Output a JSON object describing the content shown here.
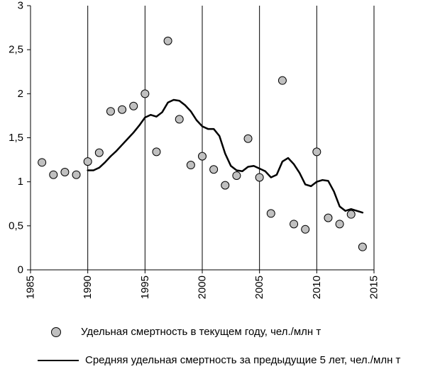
{
  "chart_data": {
    "type": "scatter",
    "title": "",
    "xlabel": "",
    "ylabel": "",
    "xlim": [
      1985,
      2015
    ],
    "ylim": [
      0,
      3
    ],
    "x_ticks": [
      1985,
      1990,
      1995,
      2000,
      2005,
      2010,
      2015
    ],
    "x_tick_labels": [
      "1985",
      "1990",
      "1995",
      "2000",
      "2005",
      "2010",
      "2015"
    ],
    "y_ticks": [
      0,
      0.5,
      1,
      1.5,
      2,
      2.5,
      3
    ],
    "y_tick_labels": [
      "0",
      "0,5",
      "1",
      "1,5",
      "2",
      "2,5",
      "3"
    ],
    "grid": "vertical",
    "legend_position": "bottom",
    "series": [
      {
        "name": "Удельная смертность в текущем году, чел./млн т",
        "kind": "scatter",
        "color": "#c0c0c0",
        "x": [
          1986,
          1987,
          1988,
          1989,
          1990,
          1991,
          1992,
          1993,
          1994,
          1995,
          1996,
          1997,
          1998,
          1999,
          2000,
          2001,
          2002,
          2003,
          2004,
          2005,
          2006,
          2007,
          2008,
          2009,
          2010,
          2011,
          2012,
          2013,
          2014
        ],
        "y": [
          1.22,
          1.08,
          1.11,
          1.08,
          1.23,
          1.33,
          1.8,
          1.82,
          1.86,
          2.0,
          1.34,
          2.6,
          1.71,
          1.19,
          1.29,
          1.14,
          0.96,
          1.07,
          1.49,
          1.05,
          0.64,
          2.15,
          0.52,
          0.46,
          1.34,
          0.59,
          0.52,
          0.63,
          0.26
        ]
      },
      {
        "name": "Средняя удельная смертность за предыдущие 5 лет, чел./млн т",
        "kind": "line",
        "color": "#000000",
        "x": [
          1990,
          1990.5,
          1991,
          1991.5,
          1992,
          1992.5,
          1993,
          1993.5,
          1994,
          1994.5,
          1995,
          1995.5,
          1996,
          1996.5,
          1997,
          1997.5,
          1998,
          1998.5,
          1999,
          1999.5,
          2000,
          2000.5,
          2001,
          2001.5,
          2002,
          2002.5,
          2003,
          2003.5,
          2004,
          2004.5,
          2005,
          2005.5,
          2006,
          2006.5,
          2007,
          2007.5,
          2008,
          2008.5,
          2009,
          2009.5,
          2010,
          2010.5,
          2011,
          2011.5,
          2012,
          2012.5,
          2013,
          2013.5,
          2014
        ],
        "y": [
          1.13,
          1.13,
          1.16,
          1.22,
          1.29,
          1.35,
          1.42,
          1.49,
          1.56,
          1.64,
          1.73,
          1.76,
          1.74,
          1.79,
          1.9,
          1.93,
          1.92,
          1.87,
          1.8,
          1.7,
          1.63,
          1.6,
          1.6,
          1.52,
          1.32,
          1.18,
          1.13,
          1.12,
          1.17,
          1.18,
          1.15,
          1.12,
          1.05,
          1.08,
          1.23,
          1.27,
          1.2,
          1.1,
          0.97,
          0.95,
          1.0,
          1.02,
          1.01,
          0.89,
          0.72,
          0.67,
          0.69,
          0.67,
          0.65
        ]
      }
    ]
  }
}
